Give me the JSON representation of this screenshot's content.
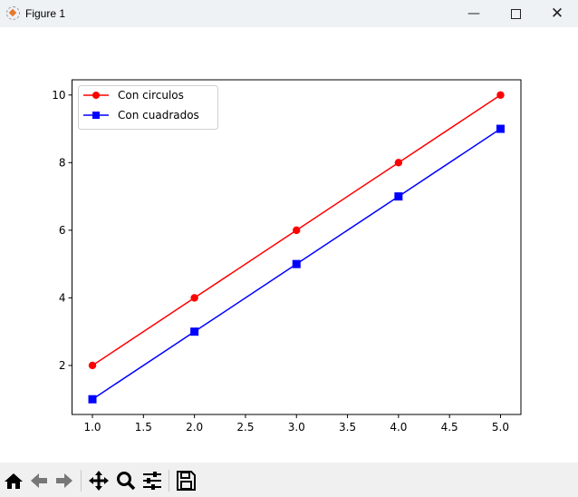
{
  "window": {
    "title": "Figure 1",
    "icon": "matplotlib-icon",
    "buttons": [
      "minimize-icon",
      "maximize-icon",
      "close-icon"
    ]
  },
  "toolbar": {
    "buttons": [
      "home-icon",
      "back-icon",
      "forward-icon",
      "pan-icon",
      "zoom-icon",
      "configure-subplots-icon",
      "save-icon"
    ]
  },
  "chart_data": {
    "type": "line",
    "title": "",
    "xlabel": "",
    "ylabel": "",
    "xlim": [
      0.8,
      5.2
    ],
    "ylim": [
      0.55,
      10.45
    ],
    "xticks": [
      "1.0",
      "1.5",
      "2.0",
      "2.5",
      "3.0",
      "3.5",
      "4.0",
      "4.5",
      "5.0"
    ],
    "yticks": [
      "2",
      "4",
      "6",
      "8",
      "10"
    ],
    "grid": false,
    "legend_placement": "upper-left",
    "x": [
      1,
      2,
      3,
      4,
      5
    ],
    "series": [
      {
        "name": "Con circulos",
        "values": [
          2,
          4,
          6,
          8,
          10
        ],
        "color": "#ff0000",
        "marker": "circle"
      },
      {
        "name": "Con cuadrados",
        "values": [
          1,
          3,
          5,
          7,
          9
        ],
        "color": "#0000ff",
        "marker": "square"
      }
    ]
  }
}
